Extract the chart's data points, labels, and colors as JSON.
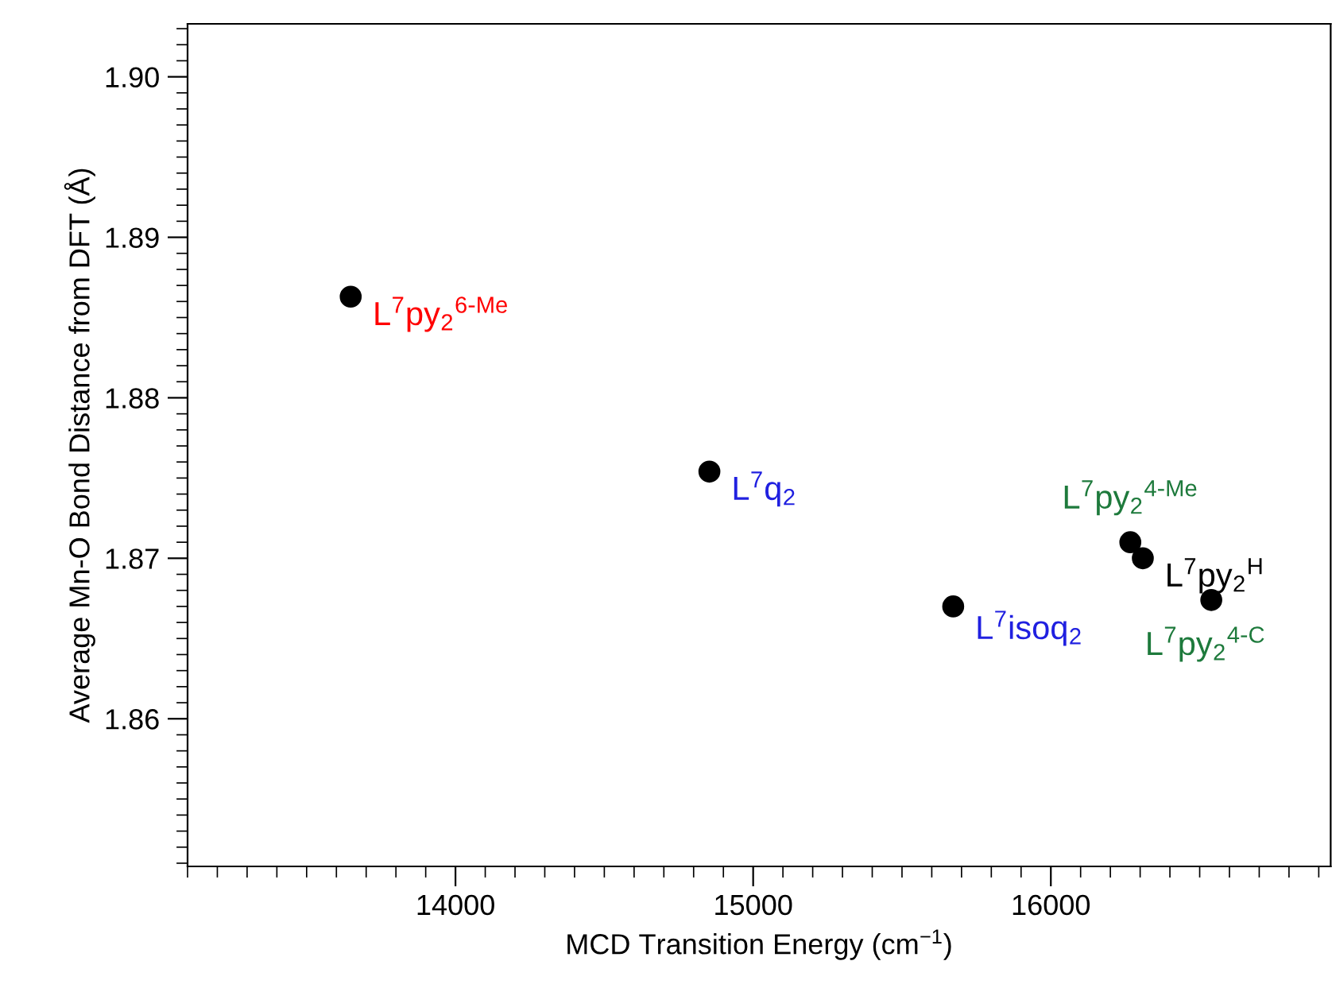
{
  "chart_data": {
    "type": "scatter",
    "xlabel": "MCD Transition Energy (cm$^{−1}$)",
    "ylabel": "Average Mn-O Bond Distance from DFT (Å)",
    "x": [
      13648,
      14853,
      15672,
      16267,
      16309,
      16539
    ],
    "values": [
      1.8863,
      1.8754,
      1.867,
      1.871,
      1.87,
      1.8674
    ],
    "color": "#000000",
    "marker": "circle",
    "xlim": [
      13100,
      16940
    ],
    "ylim": [
      1.8508,
      1.9033
    ],
    "xticks": [
      14000,
      15000,
      16000
    ],
    "yticks": [
      {
        "value": 1.86,
        "label": "1.86"
      },
      {
        "value": 1.87,
        "label": "1.87"
      },
      {
        "value": 1.88,
        "label": "1.88"
      },
      {
        "value": 1.89,
        "label": "1.89"
      },
      {
        "value": 1.9,
        "label": "1.90"
      }
    ],
    "grid": false,
    "annotations": [
      {
        "text": "L$^{7}$py$_{2}$$^{6-Me}$",
        "x": 13648,
        "y": 1.8863
      },
      {
        "text": "L$^{7}$q$_{2}$",
        "x": 14853,
        "y": 1.8754
      },
      {
        "text": "L$^{7}$isoq$_{2}$",
        "x": 15672,
        "y": 1.867
      },
      {
        "text": "L$^{7}$py$_{2}$$^{4-Me}$",
        "x": 16267,
        "y": 1.871
      },
      {
        "text": "L$^{7}$py$_{2}$$^{H}$",
        "x": 16309,
        "y": 1.87
      },
      {
        "text": "L$^{7}$py$_{2}$$^{4-C}$",
        "x": 16539,
        "y": 1.8674
      }
    ]
  }
}
